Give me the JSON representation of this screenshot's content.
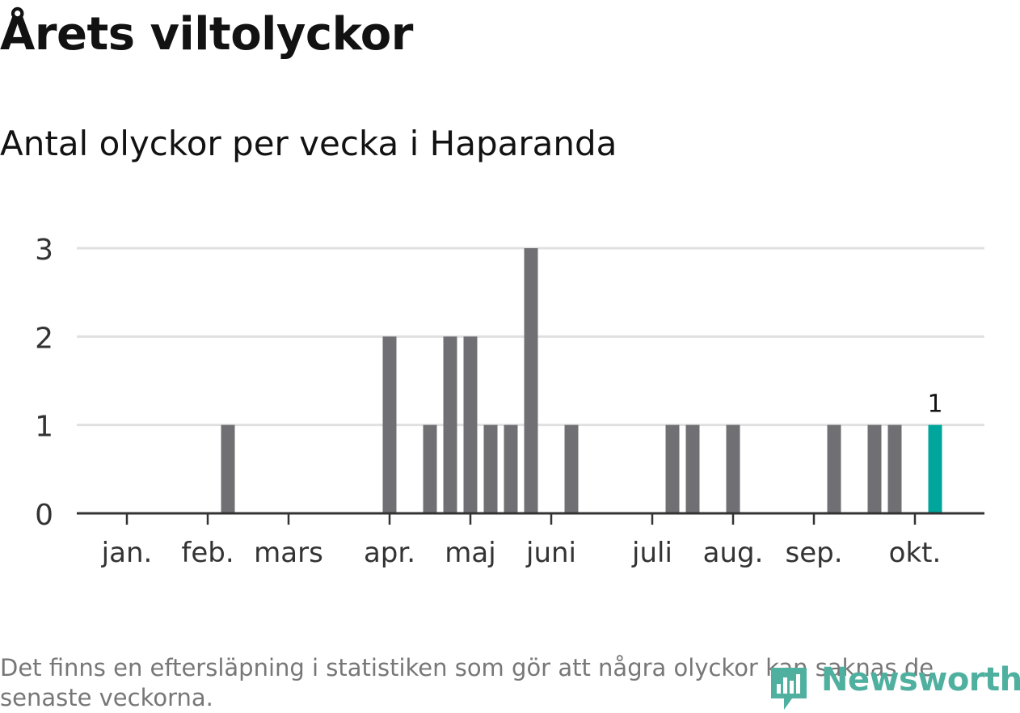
{
  "title": "Årets viltolyckor",
  "subtitle": "Antal olyckor per vecka i Haparanda",
  "footnote": "Det finns en eftersläpning i statistiken som gör att några olyckor kan saknas de senaste veckorna.",
  "brand": {
    "name": "Newsworthy",
    "color": "#4fb09f"
  },
  "colors": {
    "bar": "#707074",
    "highlight": "#00a59b",
    "grid": "#e0e0e0",
    "axis": "#333333"
  },
  "chart_data": {
    "type": "bar",
    "title": "Årets viltolyckor",
    "subtitle": "Antal olyckor per vecka i Haparanda",
    "xlabel": "",
    "ylabel": "",
    "ylim": [
      0,
      3
    ],
    "y_ticks": [
      0,
      1,
      2,
      3
    ],
    "grid": true,
    "x_unit": "week",
    "x_range": [
      1,
      43
    ],
    "x_month_ticks": [
      {
        "label": "jan.",
        "week": 1
      },
      {
        "label": "feb.",
        "week": 5
      },
      {
        "label": "mars",
        "week": 9
      },
      {
        "label": "apr.",
        "week": 14
      },
      {
        "label": "maj",
        "week": 18
      },
      {
        "label": "juni",
        "week": 22
      },
      {
        "label": "juli",
        "week": 27
      },
      {
        "label": "aug.",
        "week": 31
      },
      {
        "label": "sep.",
        "week": 35
      },
      {
        "label": "okt.",
        "week": 40
      }
    ],
    "weeks": [
      6,
      14,
      16,
      17,
      18,
      19,
      20,
      21,
      23,
      28,
      29,
      31,
      36,
      38,
      39,
      41
    ],
    "values": [
      1,
      2,
      1,
      2,
      2,
      1,
      1,
      3,
      1,
      1,
      1,
      1,
      1,
      1,
      1,
      1
    ],
    "highlight_week": 41,
    "data_labels": [
      {
        "week": 41,
        "label": "1"
      }
    ]
  }
}
